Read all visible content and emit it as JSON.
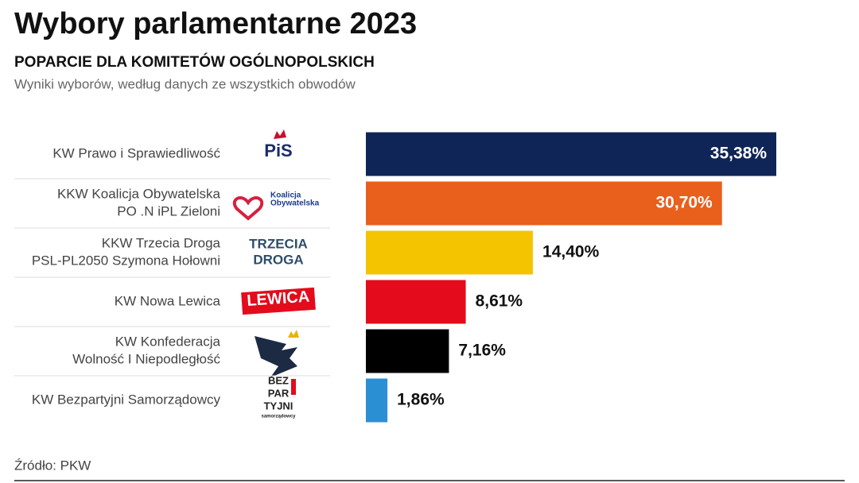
{
  "chart_data": {
    "type": "bar",
    "orientation": "horizontal",
    "title": "Wybory parlamentarne 2023",
    "subtitle": "POPARCIE DLA KOMITETÓW OGÓLNOPOLSKICH",
    "description": "Wyniki wyborów, według danych ze wszystkich obwodów",
    "source": "Źródło: PKW",
    "categories": [
      [
        "KW Prawo i Sprawiedliwość"
      ],
      [
        "KKW Koalicja Obywatelska",
        "PO .N iPL Zieloni"
      ],
      [
        "KKW Trzecia Droga",
        "PSL-PL2050 Szymona Hołowni"
      ],
      [
        "KW Nowa Lewica"
      ],
      [
        "KW Konfederacja",
        "Wolność I Niepodległość"
      ],
      [
        "KW Bezpartyjni Samorządowcy"
      ]
    ],
    "logos": [
      [
        "PiS"
      ],
      [
        "Koalicja",
        "Obywatelska"
      ],
      [
        "TRZECIA",
        "DROGA"
      ],
      [
        "LEWICA"
      ],
      null,
      [
        "BEZ",
        "PAR",
        "TYJNI",
        "samorządowcy"
      ]
    ],
    "values": [
      35.38,
      30.7,
      14.4,
      8.61,
      7.16,
      1.86
    ],
    "value_labels": [
      "35,38%",
      "30,70%",
      "14,40%",
      "8,61%",
      "7,16%",
      "1,86%"
    ],
    "colors": [
      "#0f2557",
      "#e8601c",
      "#f5c400",
      "#e30b1c",
      "#000000",
      "#2b8fd4"
    ]
  }
}
